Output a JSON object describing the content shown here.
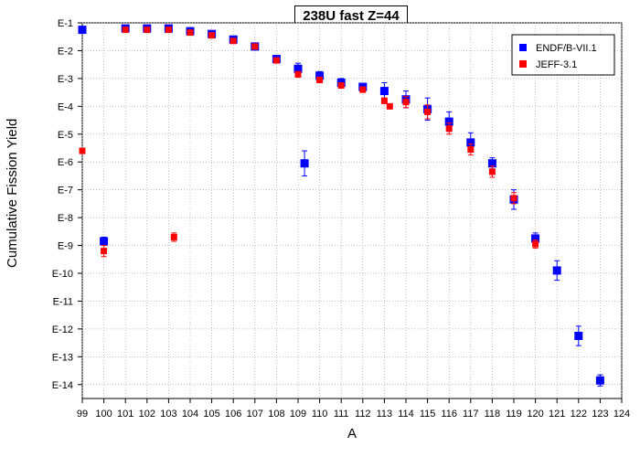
{
  "chart_data": {
    "type": "scatter",
    "title": "238U fast Z=44",
    "xlabel": "A",
    "ylabel": "Cumulative Fission Yield",
    "xlim": [
      99,
      124
    ],
    "ylim_exponent": [
      -14.5,
      -1
    ],
    "y_scale": "log",
    "x_ticks": [
      99,
      100,
      101,
      102,
      103,
      104,
      105,
      106,
      107,
      108,
      109,
      110,
      111,
      112,
      113,
      114,
      115,
      116,
      117,
      118,
      119,
      120,
      121,
      122,
      123,
      124
    ],
    "y_ticks": [
      "E-1",
      "E-2",
      "E-3",
      "E-4",
      "E-5",
      "E-6",
      "E-7",
      "E-8",
      "E-9",
      "E-10",
      "E-11",
      "E-12",
      "E-13",
      "E-14"
    ],
    "grid": true,
    "legend_position": "top-right",
    "series": [
      {
        "name": "ENDF/B-VII.1",
        "color": "#0000ff",
        "marker": "square",
        "points": [
          {
            "x": 99,
            "exp": -1.25,
            "err": 0
          },
          {
            "x": 100,
            "exp": -8.85,
            "err": 0.15
          },
          {
            "x": 101,
            "exp": -1.2,
            "err": 0
          },
          {
            "x": 102,
            "exp": -1.2,
            "err": 0
          },
          {
            "x": 103,
            "exp": -1.2,
            "err": 0
          },
          {
            "x": 104,
            "exp": -1.3,
            "err": 0
          },
          {
            "x": 105,
            "exp": -1.4,
            "err": 0
          },
          {
            "x": 106,
            "exp": -1.6,
            "err": 0
          },
          {
            "x": 107,
            "exp": -1.85,
            "err": 0.05
          },
          {
            "x": 108,
            "exp": -2.3,
            "err": 0.05
          },
          {
            "x": 109,
            "exp": -2.65,
            "err": 0.2
          },
          {
            "x": 109.3,
            "exp": -6.05,
            "err": 0.45
          },
          {
            "x": 110,
            "exp": -2.9,
            "err": 0.15
          },
          {
            "x": 111,
            "exp": -3.15,
            "err": 0.15
          },
          {
            "x": 112,
            "exp": -3.3,
            "err": 0.1
          },
          {
            "x": 113,
            "exp": -3.45,
            "err": 0.3
          },
          {
            "x": 114,
            "exp": -3.75,
            "err": 0.3
          },
          {
            "x": 115,
            "exp": -4.1,
            "err": 0.4
          },
          {
            "x": 116,
            "exp": -4.55,
            "err": 0.35
          },
          {
            "x": 117,
            "exp": -5.3,
            "err": 0.35
          },
          {
            "x": 118,
            "exp": -6.05,
            "err": 0.2
          },
          {
            "x": 119,
            "exp": -7.35,
            "err": 0.35
          },
          {
            "x": 120,
            "exp": -8.75,
            "err": 0.2
          },
          {
            "x": 121,
            "exp": -9.9,
            "err": 0.35
          },
          {
            "x": 122,
            "exp": -12.25,
            "err": 0.35
          },
          {
            "x": 123,
            "exp": -13.85,
            "err": 0.2
          }
        ]
      },
      {
        "name": "JEFF-3.1",
        "color": "#ff0000",
        "marker": "square",
        "points": [
          {
            "x": 99,
            "exp": -5.6,
            "err": 0
          },
          {
            "x": 100,
            "exp": -9.2,
            "err": 0.2
          },
          {
            "x": 101,
            "exp": -1.25,
            "err": 0
          },
          {
            "x": 102,
            "exp": -1.25,
            "err": 0
          },
          {
            "x": 103,
            "exp": -1.25,
            "err": 0
          },
          {
            "x": 103.25,
            "exp": -8.7,
            "err": 0.15
          },
          {
            "x": 104,
            "exp": -1.35,
            "err": 0
          },
          {
            "x": 105,
            "exp": -1.45,
            "err": 0
          },
          {
            "x": 106,
            "exp": -1.65,
            "err": 0
          },
          {
            "x": 107,
            "exp": -1.85,
            "err": 0.05
          },
          {
            "x": 108,
            "exp": -2.35,
            "err": 0.05
          },
          {
            "x": 109,
            "exp": -2.85,
            "err": 0.1
          },
          {
            "x": 110,
            "exp": -3.05,
            "err": 0.1
          },
          {
            "x": 111,
            "exp": -3.25,
            "err": 0.1
          },
          {
            "x": 112,
            "exp": -3.4,
            "err": 0.1
          },
          {
            "x": 113,
            "exp": -3.8,
            "err": 0.1
          },
          {
            "x": 113.25,
            "exp": -4.0,
            "err": 0
          },
          {
            "x": 114,
            "exp": -3.85,
            "err": 0.2
          },
          {
            "x": 115,
            "exp": -4.2,
            "err": 0.25
          },
          {
            "x": 116,
            "exp": -4.8,
            "err": 0.2
          },
          {
            "x": 117,
            "exp": -5.55,
            "err": 0.2
          },
          {
            "x": 118,
            "exp": -6.35,
            "err": 0.2
          },
          {
            "x": 119,
            "exp": -7.3,
            "err": 0.2
          },
          {
            "x": 120,
            "exp": -8.95,
            "err": 0.15
          }
        ]
      }
    ]
  }
}
